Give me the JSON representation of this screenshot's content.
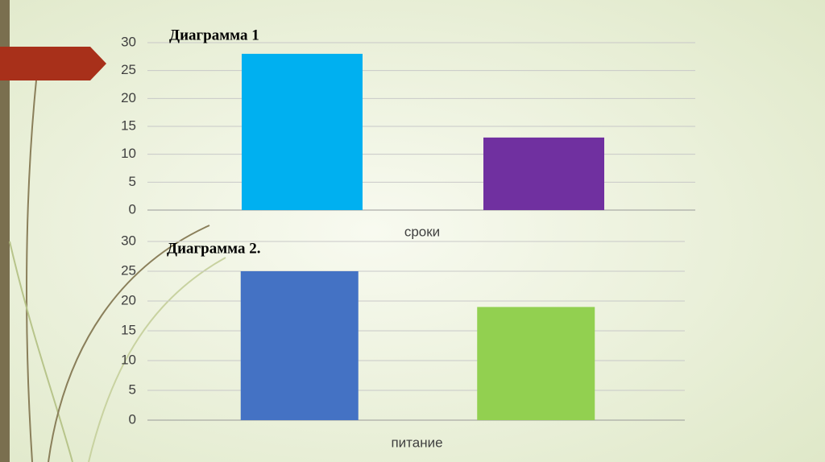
{
  "chart_data": [
    {
      "type": "bar",
      "title": "Диаграмма 1",
      "xlabel": "сроки",
      "categories": [
        null,
        null
      ],
      "values": [
        28,
        13
      ],
      "colors": [
        "#00b0f0",
        "#7030a0"
      ],
      "ylim": [
        0,
        30
      ],
      "yticks": [
        0,
        5,
        10,
        15,
        20,
        25,
        30
      ],
      "grid": true
    },
    {
      "type": "bar",
      "title": "Диаграмма 2.",
      "xlabel": "питание",
      "categories": [
        null,
        null
      ],
      "values": [
        25,
        19
      ],
      "colors": [
        "#4472c4",
        "#92d050"
      ],
      "ylim": [
        0,
        30
      ],
      "yticks": [
        0,
        5,
        10,
        15,
        20,
        25,
        30
      ],
      "grid": true
    }
  ]
}
